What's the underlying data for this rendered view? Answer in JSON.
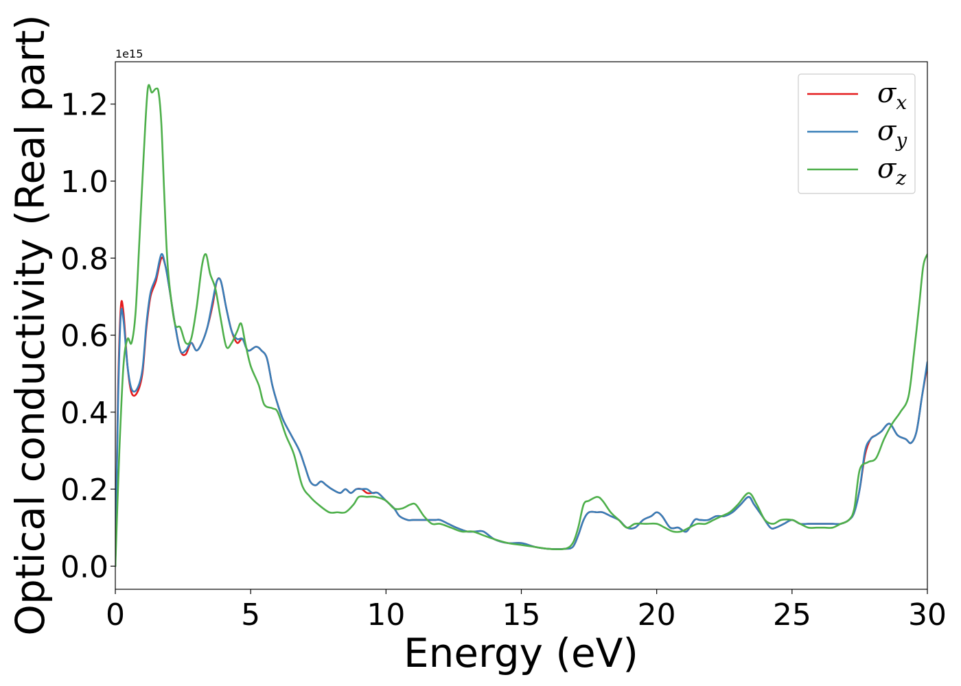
{
  "chart_data": {
    "type": "line",
    "xlabel": "Energy (eV)",
    "ylabel": "Optical conductivity (Real part)",
    "y_offset_text": "1e15",
    "xlim": [
      0,
      30
    ],
    "ylim": [
      -0.06,
      1.31
    ],
    "xticks": [
      0,
      5,
      10,
      15,
      20,
      25,
      30
    ],
    "xtick_labels": [
      "0",
      "5",
      "10",
      "15",
      "20",
      "25",
      "30"
    ],
    "yticks": [
      0.0,
      0.2,
      0.4,
      0.6,
      0.8,
      1.0,
      1.2
    ],
    "ytick_labels": [
      "0.0",
      "0.2",
      "0.4",
      "0.6",
      "0.8",
      "1.0",
      "1.2"
    ],
    "grid": false,
    "legend_position": "top-right",
    "series": [
      {
        "name": "σx",
        "legend_base": "σ",
        "legend_sub": "x",
        "color": "#e41a1c",
        "x": [
          0,
          0.1,
          0.2,
          0.3,
          0.45,
          0.6,
          0.8,
          1.0,
          1.15,
          1.3,
          1.5,
          1.7,
          1.85,
          2.0,
          2.2,
          2.4,
          2.6,
          2.8,
          3.0,
          3.2,
          3.4,
          3.6,
          3.75,
          3.9,
          4.1,
          4.3,
          4.5,
          4.7,
          4.9,
          5.2,
          5.4,
          5.6,
          5.8,
          6.0,
          6.2,
          6.5,
          6.8,
          7.0,
          7.2,
          7.4,
          7.6,
          7.8,
          8.0,
          8.3,
          8.5,
          8.7,
          8.9,
          9.1,
          9.3,
          9.5,
          9.7,
          10.0,
          10.3,
          10.5,
          10.8,
          11.0,
          11.3,
          11.5,
          11.8,
          12.0,
          12.3,
          12.6,
          13.0,
          13.3,
          13.6,
          14.0,
          14.5,
          15.0,
          15.5,
          16.0,
          16.6,
          16.9,
          17.1,
          17.3,
          17.5,
          17.8,
          18.0,
          18.3,
          18.6,
          18.9,
          19.2,
          19.5,
          19.8,
          20.0,
          20.2,
          20.5,
          20.8,
          21.1,
          21.4,
          21.6,
          21.9,
          22.2,
          22.5,
          22.8,
          23.1,
          23.4,
          23.6,
          23.9,
          24.2,
          24.4,
          24.7,
          25.0,
          25.3,
          25.6,
          25.9,
          26.2,
          26.5,
          26.8,
          27.1,
          27.3,
          27.5,
          27.7,
          27.9,
          28.1,
          28.3,
          28.6,
          28.9,
          29.2,
          29.4,
          29.6,
          29.8,
          30.0
        ],
        "y": [
          0.0,
          0.45,
          0.67,
          0.66,
          0.52,
          0.45,
          0.45,
          0.5,
          0.62,
          0.7,
          0.74,
          0.8,
          0.78,
          0.72,
          0.63,
          0.56,
          0.55,
          0.58,
          0.56,
          0.58,
          0.62,
          0.68,
          0.74,
          0.74,
          0.67,
          0.61,
          0.58,
          0.59,
          0.56,
          0.57,
          0.56,
          0.54,
          0.47,
          0.42,
          0.38,
          0.34,
          0.3,
          0.26,
          0.22,
          0.21,
          0.22,
          0.21,
          0.2,
          0.19,
          0.2,
          0.19,
          0.2,
          0.2,
          0.19,
          0.19,
          0.19,
          0.17,
          0.15,
          0.13,
          0.12,
          0.12,
          0.12,
          0.12,
          0.12,
          0.12,
          0.11,
          0.1,
          0.09,
          0.09,
          0.09,
          0.07,
          0.06,
          0.06,
          0.05,
          0.045,
          0.045,
          0.05,
          0.08,
          0.12,
          0.14,
          0.14,
          0.14,
          0.13,
          0.12,
          0.1,
          0.1,
          0.12,
          0.13,
          0.14,
          0.13,
          0.1,
          0.1,
          0.09,
          0.12,
          0.12,
          0.12,
          0.13,
          0.13,
          0.14,
          0.16,
          0.18,
          0.16,
          0.13,
          0.1,
          0.1,
          0.11,
          0.12,
          0.11,
          0.11,
          0.11,
          0.11,
          0.11,
          0.11,
          0.12,
          0.14,
          0.2,
          0.29,
          0.33,
          0.34,
          0.35,
          0.37,
          0.34,
          0.33,
          0.32,
          0.35,
          0.44,
          0.52
        ]
      },
      {
        "name": "σy",
        "legend_base": "σ",
        "legend_sub": "y",
        "color": "#377eb8",
        "x": [
          0,
          0.1,
          0.2,
          0.3,
          0.45,
          0.6,
          0.8,
          1.0,
          1.15,
          1.3,
          1.5,
          1.7,
          1.85,
          2.0,
          2.2,
          2.4,
          2.6,
          2.8,
          3.0,
          3.2,
          3.4,
          3.6,
          3.75,
          3.9,
          4.1,
          4.3,
          4.5,
          4.7,
          4.9,
          5.2,
          5.4,
          5.6,
          5.8,
          6.0,
          6.2,
          6.5,
          6.8,
          7.0,
          7.2,
          7.4,
          7.6,
          7.8,
          8.0,
          8.3,
          8.5,
          8.7,
          8.9,
          9.1,
          9.3,
          9.5,
          9.7,
          10.0,
          10.3,
          10.5,
          10.8,
          11.0,
          11.3,
          11.5,
          11.8,
          12.0,
          12.3,
          12.6,
          13.0,
          13.3,
          13.6,
          14.0,
          14.5,
          15.0,
          15.5,
          16.0,
          16.6,
          16.9,
          17.1,
          17.3,
          17.5,
          17.8,
          18.0,
          18.3,
          18.6,
          18.9,
          19.2,
          19.5,
          19.8,
          20.0,
          20.2,
          20.5,
          20.8,
          21.1,
          21.4,
          21.6,
          21.9,
          22.2,
          22.5,
          22.8,
          23.1,
          23.4,
          23.6,
          23.9,
          24.2,
          24.4,
          24.7,
          25.0,
          25.3,
          25.6,
          25.9,
          26.2,
          26.5,
          26.8,
          27.1,
          27.3,
          27.5,
          27.7,
          27.9,
          28.1,
          28.3,
          28.6,
          28.9,
          29.2,
          29.4,
          29.6,
          29.8,
          30.0
        ],
        "y": [
          0.0,
          0.42,
          0.65,
          0.64,
          0.52,
          0.46,
          0.46,
          0.51,
          0.63,
          0.71,
          0.75,
          0.81,
          0.78,
          0.72,
          0.63,
          0.56,
          0.56,
          0.58,
          0.56,
          0.58,
          0.62,
          0.69,
          0.74,
          0.74,
          0.67,
          0.61,
          0.59,
          0.59,
          0.56,
          0.57,
          0.56,
          0.54,
          0.47,
          0.42,
          0.38,
          0.34,
          0.3,
          0.26,
          0.22,
          0.21,
          0.22,
          0.21,
          0.2,
          0.19,
          0.2,
          0.19,
          0.2,
          0.2,
          0.2,
          0.19,
          0.19,
          0.17,
          0.15,
          0.13,
          0.12,
          0.12,
          0.12,
          0.12,
          0.12,
          0.12,
          0.11,
          0.1,
          0.09,
          0.09,
          0.09,
          0.07,
          0.06,
          0.06,
          0.05,
          0.045,
          0.045,
          0.05,
          0.08,
          0.12,
          0.14,
          0.14,
          0.14,
          0.13,
          0.12,
          0.1,
          0.1,
          0.12,
          0.13,
          0.14,
          0.13,
          0.1,
          0.1,
          0.09,
          0.12,
          0.12,
          0.12,
          0.13,
          0.13,
          0.14,
          0.16,
          0.18,
          0.16,
          0.13,
          0.1,
          0.1,
          0.11,
          0.12,
          0.11,
          0.11,
          0.11,
          0.11,
          0.11,
          0.11,
          0.12,
          0.14,
          0.2,
          0.3,
          0.33,
          0.34,
          0.35,
          0.37,
          0.34,
          0.33,
          0.32,
          0.35,
          0.44,
          0.53
        ]
      },
      {
        "name": "σz",
        "legend_base": "σ",
        "legend_sub": "z",
        "color": "#4daf4a",
        "x": [
          0,
          0.15,
          0.3,
          0.45,
          0.6,
          0.75,
          0.9,
          1.05,
          1.2,
          1.35,
          1.5,
          1.6,
          1.7,
          1.8,
          1.9,
          2.0,
          2.2,
          2.4,
          2.6,
          2.8,
          3.0,
          3.2,
          3.35,
          3.5,
          3.7,
          3.9,
          4.1,
          4.3,
          4.5,
          4.65,
          4.8,
          5.0,
          5.3,
          5.5,
          5.8,
          6.0,
          6.3,
          6.6,
          6.9,
          7.2,
          7.5,
          7.9,
          8.2,
          8.5,
          8.8,
          9.0,
          9.3,
          9.6,
          10.0,
          10.3,
          10.6,
          10.9,
          11.1,
          11.4,
          11.7,
          12.0,
          12.4,
          12.8,
          13.2,
          13.6,
          14.0,
          14.5,
          15.0,
          15.5,
          16.0,
          16.6,
          16.9,
          17.1,
          17.3,
          17.5,
          17.8,
          18.0,
          18.3,
          18.6,
          18.9,
          19.2,
          19.6,
          20.0,
          20.3,
          20.6,
          20.9,
          21.2,
          21.5,
          21.8,
          22.1,
          22.4,
          22.7,
          23.0,
          23.4,
          23.7,
          24.0,
          24.3,
          24.6,
          25.0,
          25.3,
          25.6,
          25.9,
          26.2,
          26.5,
          26.8,
          27.1,
          27.3,
          27.5,
          27.8,
          28.1,
          28.4,
          28.7,
          29.0,
          29.3,
          29.5,
          29.7,
          29.85,
          30.0
        ],
        "y": [
          0.0,
          0.3,
          0.52,
          0.59,
          0.58,
          0.66,
          0.86,
          1.07,
          1.24,
          1.23,
          1.24,
          1.23,
          1.15,
          0.98,
          0.82,
          0.73,
          0.63,
          0.62,
          0.58,
          0.59,
          0.67,
          0.78,
          0.81,
          0.76,
          0.72,
          0.64,
          0.57,
          0.58,
          0.61,
          0.63,
          0.58,
          0.52,
          0.47,
          0.42,
          0.41,
          0.4,
          0.34,
          0.29,
          0.21,
          0.18,
          0.16,
          0.14,
          0.14,
          0.14,
          0.16,
          0.18,
          0.18,
          0.18,
          0.17,
          0.15,
          0.15,
          0.16,
          0.16,
          0.13,
          0.11,
          0.11,
          0.1,
          0.09,
          0.09,
          0.08,
          0.07,
          0.06,
          0.055,
          0.05,
          0.045,
          0.045,
          0.06,
          0.1,
          0.16,
          0.17,
          0.18,
          0.17,
          0.14,
          0.12,
          0.1,
          0.11,
          0.11,
          0.11,
          0.1,
          0.09,
          0.09,
          0.1,
          0.11,
          0.11,
          0.12,
          0.13,
          0.14,
          0.16,
          0.19,
          0.16,
          0.12,
          0.11,
          0.12,
          0.12,
          0.11,
          0.1,
          0.1,
          0.1,
          0.1,
          0.11,
          0.12,
          0.15,
          0.25,
          0.27,
          0.28,
          0.33,
          0.37,
          0.4,
          0.44,
          0.55,
          0.68,
          0.78,
          0.81
        ]
      }
    ]
  }
}
